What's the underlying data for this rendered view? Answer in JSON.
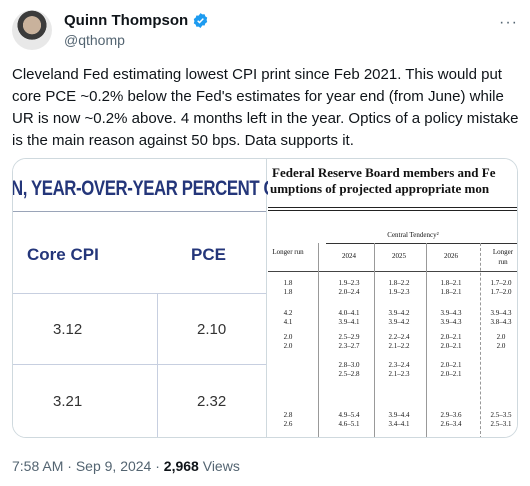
{
  "author": {
    "name": "Quinn Thompson",
    "handle": "@qthomp",
    "more_label": "···"
  },
  "tweet": {
    "text": "Cleveland Fed estimating lowest CPI print since Feb 2021. This would put core PCE ~0.2% below the Fed's estimates for year end (from June) while UR is now ~0.2% above. 4 months left in the year. Optics of a policy mistake is the main reason against 50 bps. Data supports it."
  },
  "left_image": {
    "title": "N, YEAR-OVER-YEAR PERCENT C",
    "col_cpi": "Core CPI",
    "col_pce": "PCE",
    "rows": [
      {
        "cpi": "3.12",
        "pce": "2.10"
      },
      {
        "cpi": "3.21",
        "pce": "2.32"
      }
    ]
  },
  "right_image": {
    "title_line1": "Federal Reserve Board members and Fe",
    "title_line2": "umptions of projected appropriate mon",
    "central_tendency": "Central Tendency²",
    "headers": {
      "longer_run_left": "Longer run",
      "y2024": "2024",
      "y2025": "2025",
      "y2026": "2026",
      "longer_run_right": "Longer run"
    },
    "rows": [
      {
        "lr": "1.8\n1.8",
        "a": "1.9–2.3\n2.0–2.4",
        "b": "1.8–2.2\n1.9–2.3",
        "c": "1.8–2.1\n1.8–2.1",
        "d": "1.7–2.0\n1.7–2.0"
      },
      {
        "lr": "4.2\n4.1",
        "a": "4.0–4.1\n3.9–4.1",
        "b": "3.9–4.2\n3.9–4.2",
        "c": "3.9–4.3\n3.9–4.3",
        "d": "3.9–4.3\n3.8–4.3"
      },
      {
        "lr": "2.0\n2.0",
        "a": "2.5–2.9\n2.3–2.7",
        "b": "2.2–2.4\n2.1–2.2",
        "c": "2.0–2.1\n2.0–2.1",
        "d": "2.0\n2.0"
      },
      {
        "lr": "",
        "a": "2.8–3.0\n2.5–2.8",
        "b": "2.3–2.4\n2.1–2.3",
        "c": "2.0–2.1\n2.0–2.1",
        "d": ""
      },
      {
        "lr": "2.8\n2.6",
        "a": "4.9–5.4\n4.6–5.1",
        "b": "3.9–4.4\n3.4–4.1",
        "c": "2.9–3.6\n2.6–3.4",
        "d": "2.5–3.5\n2.5–3.1"
      }
    ]
  },
  "meta": {
    "time": "7:58 AM",
    "sep": "·",
    "date": "Sep 9, 2024",
    "views_count": "2,968",
    "views_label": "Views"
  }
}
